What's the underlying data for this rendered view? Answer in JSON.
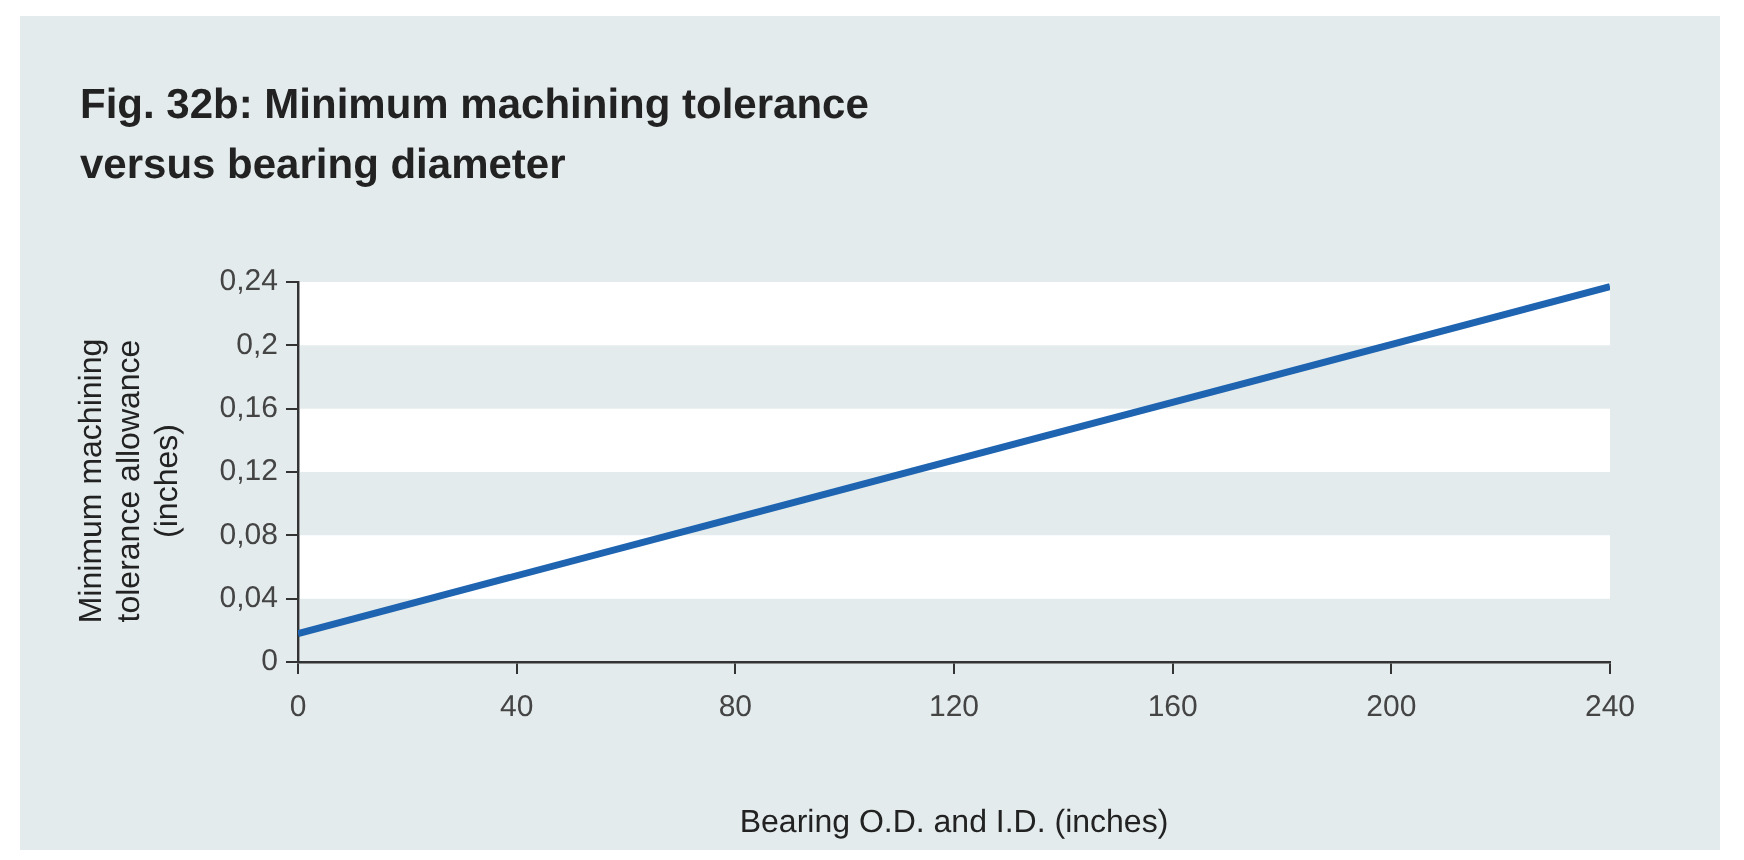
{
  "chart_data": {
    "type": "line",
    "title": "Fig. 32b: Minimum machining tolerance versus bearing diameter",
    "xlabel": "Bearing O.D. and I.D. (inches)",
    "ylabel": "Minimum machining tolerance allowance (inches)",
    "x": [
      0,
      240
    ],
    "series": [
      {
        "color": "#1f64b0",
        "values": [
          0.018,
          0.237
        ]
      }
    ],
    "xlim": [
      0,
      240
    ],
    "xticks": [
      0,
      40,
      80,
      120,
      160,
      200,
      240
    ],
    "ylim": [
      0,
      0.24
    ],
    "yticks": [
      0,
      {
        "value": 0.04,
        "label": "0,04"
      },
      {
        "value": 0.08,
        "label": "0,08"
      },
      {
        "value": 0.12,
        "label": "0,12"
      },
      {
        "value": 0.16,
        "label": "0,16"
      },
      {
        "value": 0.2,
        "label": "0,2"
      },
      {
        "value": 0.24,
        "label": "0,24"
      }
    ],
    "bands": [
      {
        "axis": "y",
        "from": 0.04,
        "to": 0.08,
        "color": "#ffffff"
      },
      {
        "axis": "y",
        "from": 0.12,
        "to": 0.16,
        "color": "#ffffff"
      },
      {
        "axis": "y",
        "from": 0.2,
        "to": 0.24,
        "color": "#ffffff"
      }
    ],
    "legend": false,
    "marker": "none",
    "line_style": "solid"
  }
}
